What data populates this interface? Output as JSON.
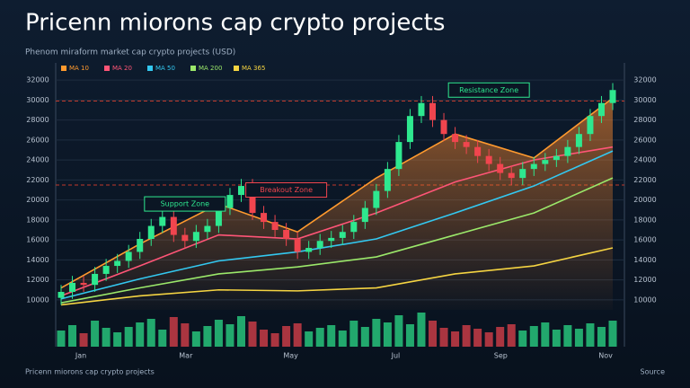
{
  "chart_data": {
    "type": "candlestick",
    "title": "Pricenn miorons cap crypto projects",
    "subtitle": "Phenom miraform market cap crypto projects (USD)",
    "footer": "Pricenn miorons cap crypto projects",
    "source": "Source",
    "ylim": [
      9000,
      33000
    ],
    "yticks": [
      32000,
      30000,
      28000,
      26000,
      24000,
      22000,
      20000,
      18000,
      16000,
      14000,
      12000,
      10000
    ],
    "grid": true,
    "x_labels": [
      "Jan",
      "Mar",
      "May",
      "Jul",
      "Sep",
      "Nov"
    ],
    "open": [
      10200,
      10800,
      11700,
      11500,
      12600,
      13400,
      13900,
      14800,
      16100,
      17400,
      18300,
      16500,
      15900,
      16800,
      17400,
      19200,
      20500,
      21400,
      18700,
      17800,
      17000,
      16100,
      14800,
      15200,
      15900,
      16200,
      16800,
      17800,
      19200,
      20900,
      23100,
      25800,
      28400,
      29700,
      28000,
      26600,
      25800,
      25300,
      24400,
      23600,
      22700,
      22200,
      23100,
      23600,
      24000,
      24400,
      25300,
      26600,
      28400,
      29700
    ],
    "close": [
      10800,
      11700,
      11500,
      12600,
      13400,
      13900,
      14800,
      16100,
      17400,
      18300,
      16500,
      15900,
      16800,
      17400,
      19200,
      20500,
      21400,
      18700,
      17800,
      17000,
      16100,
      14800,
      15200,
      15900,
      16200,
      16800,
      17800,
      19200,
      20900,
      23100,
      25800,
      28400,
      29700,
      28000,
      26600,
      25800,
      25300,
      24400,
      23600,
      22700,
      22200,
      23100,
      23600,
      24000,
      24400,
      25300,
      26600,
      28400,
      29700,
      31000
    ],
    "high": [
      11500,
      12400,
      12400,
      13300,
      14100,
      14600,
      15500,
      16800,
      18100,
      19000,
      19000,
      17200,
      17500,
      18100,
      19900,
      21200,
      22100,
      22100,
      19400,
      18500,
      17700,
      16800,
      15900,
      16600,
      16900,
      17500,
      18500,
      19900,
      21600,
      23800,
      26500,
      29100,
      30400,
      30400,
      28700,
      27300,
      26500,
      26000,
      25100,
      24300,
      23400,
      23800,
      24300,
      24700,
      25100,
      26000,
      27300,
      29100,
      30400,
      31700
    ],
    "low": [
      9500,
      10100,
      10800,
      10800,
      11900,
      12700,
      13200,
      14100,
      15400,
      16700,
      15800,
      15200,
      15200,
      16100,
      16700,
      18500,
      19800,
      18000,
      17100,
      16300,
      15400,
      14100,
      14100,
      14500,
      15200,
      15500,
      16100,
      17100,
      18500,
      20200,
      22400,
      25100,
      27700,
      27300,
      25900,
      25100,
      24600,
      23700,
      22900,
      22000,
      21500,
      21500,
      22400,
      22900,
      23300,
      23700,
      24600,
      25900,
      27700,
      29000
    ],
    "up_color": "#2ee88f",
    "down_color": "#f0454e",
    "volume": [
      1800,
      2400,
      1500,
      2900,
      2100,
      1600,
      2200,
      2700,
      3100,
      1900,
      3300,
      2600,
      1700,
      2300,
      3000,
      2500,
      3400,
      2800,
      1900,
      1500,
      2300,
      2600,
      1700,
      2100,
      2400,
      1800,
      2900,
      2200,
      3100,
      2700,
      3500,
      2500,
      3800,
      2900,
      2100,
      1700,
      2400,
      2000,
      1600,
      2200,
      2500,
      1800,
      2300,
      2700,
      1900,
      2400,
      2000,
      2600,
      2200,
      2900
    ],
    "vlim": [
      0,
      4000
    ],
    "ma_x": [
      0,
      7,
      14,
      21,
      28,
      35,
      42,
      49
    ],
    "series": [
      {
        "name": "MA 10",
        "color": "#ff9a2e",
        "values": [
          11200,
          15600,
          19600,
          16800,
          22200,
          26600,
          24200,
          30200
        ]
      },
      {
        "name": "MA 20",
        "color": "#ff5577",
        "values": [
          10400,
          13400,
          16500,
          16100,
          18700,
          21800,
          24000,
          25300
        ]
      },
      {
        "name": "MA 50",
        "color": "#33c8f0",
        "values": [
          10100,
          12100,
          13900,
          14800,
          16100,
          18700,
          21400,
          24900
        ]
      },
      {
        "name": "MA 200",
        "color": "#9be86a",
        "values": [
          9700,
          11200,
          12600,
          13300,
          14300,
          16500,
          18700,
          22200
        ]
      },
      {
        "name": "MA 365",
        "color": "#f5d442",
        "values": [
          9500,
          10400,
          11000,
          10900,
          11200,
          12600,
          13400,
          15200
        ]
      }
    ],
    "levels": [
      29900,
      21500
    ],
    "annotations": [
      {
        "text": "Resistance Zone",
        "value": 31000,
        "index": 38,
        "color": "#2ee88f"
      },
      {
        "text": "Breakout Zone",
        "value": 21000,
        "index": 20,
        "color": "#f0454e"
      },
      {
        "text": "Support Zone",
        "value": 19600,
        "index": 11,
        "color": "#2ee88f"
      }
    ]
  }
}
